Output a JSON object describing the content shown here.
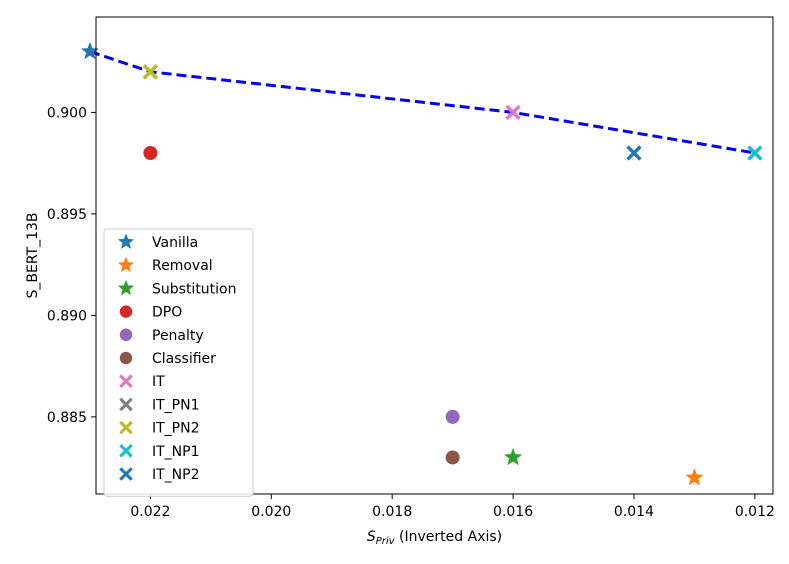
{
  "chart_data": {
    "type": "scatter",
    "title": "",
    "xlabel_main": "S",
    "xlabel_sub": "Priv",
    "xlabel_suffix": " (Inverted Axis)",
    "ylabel": "S_BERT_13B",
    "x_inverted": true,
    "xlim": [
      0.0229,
      0.0117
    ],
    "ylim": [
      0.8812,
      0.9047
    ],
    "xticks": [
      0.022,
      0.02,
      0.018,
      0.016,
      0.014,
      0.012
    ],
    "xtick_labels": [
      "0.022",
      "0.020",
      "0.018",
      "0.016",
      "0.014",
      "0.012"
    ],
    "yticks": [
      0.885,
      0.89,
      0.895,
      0.9
    ],
    "ytick_labels": [
      "0.885",
      "0.890",
      "0.895",
      "0.900"
    ],
    "legend_position": "center-left",
    "series": [
      {
        "name": "Vanilla",
        "marker": "star",
        "color": "#1f77b4",
        "x": 0.023,
        "y": 0.903
      },
      {
        "name": "Removal",
        "marker": "star",
        "color": "#ff7f0e",
        "x": 0.013,
        "y": 0.882
      },
      {
        "name": "Substitution",
        "marker": "star",
        "color": "#2ca02c",
        "x": 0.016,
        "y": 0.883
      },
      {
        "name": "DPO",
        "marker": "circle",
        "color": "#d62728",
        "x": 0.022,
        "y": 0.898
      },
      {
        "name": "Penalty",
        "marker": "circle",
        "color": "#9467bd",
        "x": 0.017,
        "y": 0.885
      },
      {
        "name": "Classifier",
        "marker": "circle",
        "color": "#8c564b",
        "x": 0.017,
        "y": 0.883
      },
      {
        "name": "IT",
        "marker": "x",
        "color": "#e377c2",
        "x": 0.016,
        "y": 0.9
      },
      {
        "name": "IT_PN1",
        "marker": "x",
        "color": "#7f7f7f",
        "x": 0.022,
        "y": 0.902
      },
      {
        "name": "IT_PN2",
        "marker": "x",
        "color": "#bcbd22",
        "x": 0.022,
        "y": 0.902
      },
      {
        "name": "IT_NP1",
        "marker": "x",
        "color": "#17becf",
        "x": 0.012,
        "y": 0.898
      },
      {
        "name": "IT_NP2",
        "marker": "x",
        "color": "#1f77b4",
        "x": 0.014,
        "y": 0.898
      }
    ],
    "frontier": {
      "style": "dashed",
      "color": "#0000ff",
      "points": [
        {
          "x": 0.023,
          "y": 0.903
        },
        {
          "x": 0.022,
          "y": 0.902
        },
        {
          "x": 0.016,
          "y": 0.9
        },
        {
          "x": 0.012,
          "y": 0.898
        }
      ]
    }
  }
}
